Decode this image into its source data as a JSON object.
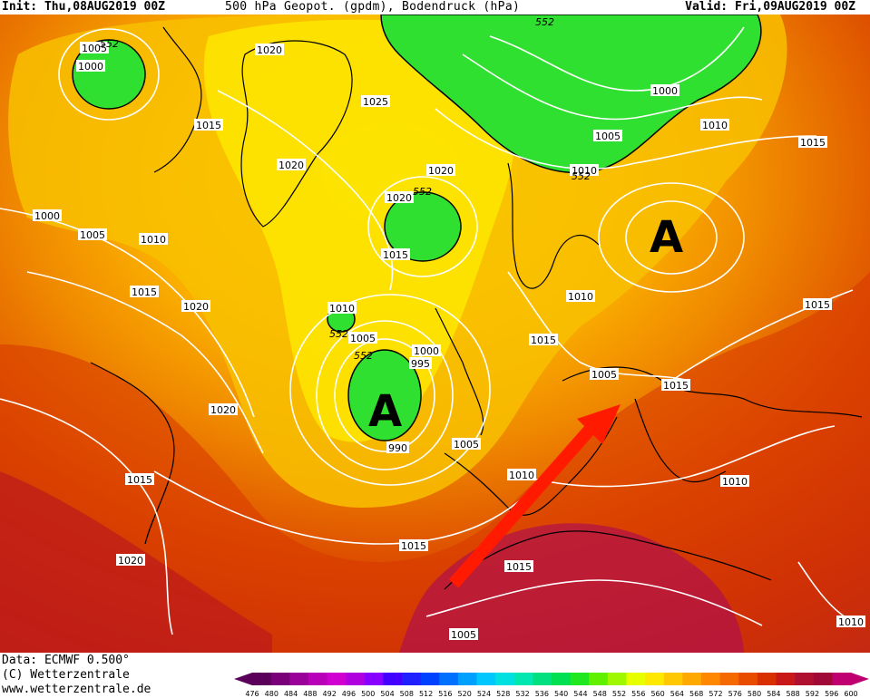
{
  "header": {
    "init": "Init: Thu,08AUG2019 00Z",
    "title": "500 hPa Geopot. (gpdm), Bodendruck (hPa)",
    "valid": "Valid: Fri,09AUG2019 00Z"
  },
  "footer": {
    "data": "Data: ECMWF  0.500°",
    "copyright": "(C) Wetterzentrale",
    "website": "www.wetterzentrale.de"
  },
  "map": {
    "high_marker": "A",
    "isobar_labels": [
      "1005",
      "1000",
      "1020",
      "1015",
      "1025",
      "1020",
      "1020",
      "1000",
      "1005",
      "1010",
      "1015",
      "1020",
      "1020",
      "1015",
      "1010",
      "1005",
      "1000",
      "995",
      "990",
      "1005",
      "1020",
      "1015",
      "1020",
      "1015",
      "1010",
      "1015",
      "1005",
      "1010",
      "1015",
      "1005",
      "1010",
      "1015",
      "1015",
      "1000",
      "1005",
      "1010",
      "1010",
      "1015",
      "1010"
    ],
    "geopot_labels": [
      "552",
      "552",
      "552",
      "552",
      "552",
      "552"
    ]
  },
  "colorbar": {
    "ticks": [
      "476",
      "480",
      "484",
      "488",
      "492",
      "496",
      "500",
      "504",
      "508",
      "512",
      "516",
      "520",
      "524",
      "528",
      "532",
      "536",
      "540",
      "544",
      "548",
      "552",
      "556",
      "560",
      "564",
      "568",
      "572",
      "576",
      "580",
      "584",
      "588",
      "592",
      "596",
      "600"
    ],
    "colors": [
      "#5a005a",
      "#7a007a",
      "#9a009a",
      "#b800b8",
      "#d000d0",
      "#b000e0",
      "#8800ff",
      "#4400ff",
      "#2020ff",
      "#0040ff",
      "#0070ff",
      "#00a0ff",
      "#00c8ff",
      "#00e0e0",
      "#00e8b0",
      "#00e080",
      "#00e050",
      "#20e820",
      "#60f000",
      "#a0f800",
      "#e8ff00",
      "#ffe800",
      "#ffc800",
      "#ffa800",
      "#ff8800",
      "#f46a00",
      "#e84c00",
      "#d83000",
      "#c81818",
      "#b01030",
      "#a00838",
      "#c00070"
    ]
  },
  "colors": {
    "isobar": "#ffffff",
    "coast": "#000000",
    "arrow": "#ff1a00"
  }
}
